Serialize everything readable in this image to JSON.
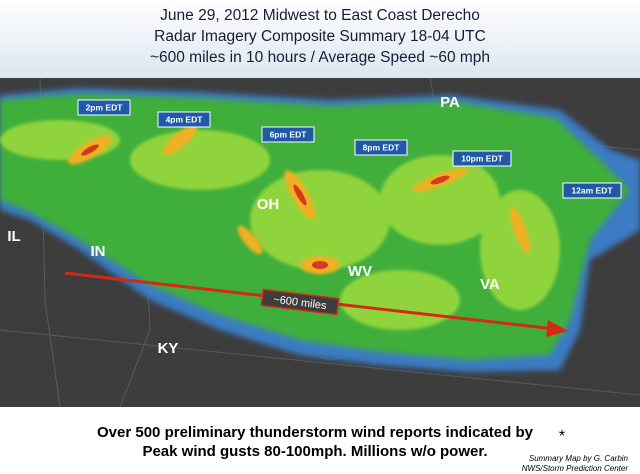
{
  "header": {
    "lines": [
      "June 29, 2012 Midwest to East Coast Derecho",
      "Radar Imagery Composite Summary 18-04 UTC",
      "~600 miles in 10 hours / Average Speed ~60 mph"
    ]
  },
  "map": {
    "times": [
      "2pm EDT",
      "4pm EDT",
      "6pm EDT",
      "8pm EDT",
      "10pm EDT",
      "12am EDT"
    ],
    "states": [
      "PA",
      "OH",
      "IL",
      "IN",
      "WV",
      "VA",
      "KY"
    ],
    "arrow_label": "~600 miles"
  },
  "footer": {
    "lines": [
      "Over 500 preliminary thunderstorm wind reports indicated by",
      "Peak wind gusts 80-100mph. Millions w/o power."
    ],
    "symbol": "*",
    "credit": [
      "Summary Map by G. Carbin",
      "NWS/Storm Prediction Center"
    ]
  }
}
